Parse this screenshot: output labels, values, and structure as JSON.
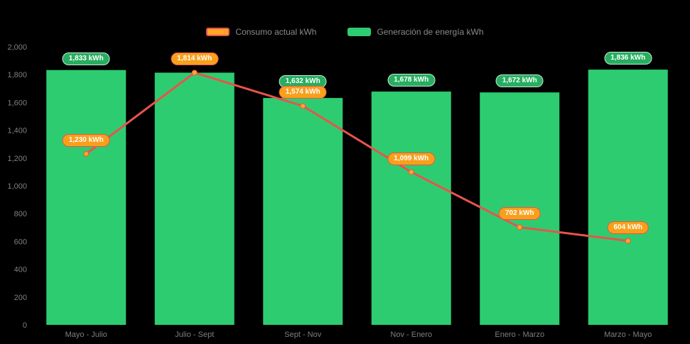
{
  "legend": {
    "consumption_label": "Consumo actual kWh",
    "generation_label": "Generación de energía kWh"
  },
  "colors": {
    "background": "#000000",
    "bar": "#2ECC71",
    "line": "#E8544B",
    "point_fill": "#FFA726",
    "axis_text": "#7F7F7F",
    "green_pill": "#27AE60",
    "orange_pill": "#F9A01B"
  },
  "chart_data": {
    "type": "bar",
    "subtype": "bar-with-line-overlay",
    "categories": [
      "Mayo - Julio",
      "Julio - Sept",
      "Sept - Nov",
      "Nov - Enero",
      "Enero - Marzo",
      "Marzo - Mayo"
    ],
    "series": [
      {
        "name": "Generación de energía kWh",
        "type": "bar",
        "color": "#2ECC71",
        "values": [
          1833,
          1814,
          1632,
          1678,
          1672,
          1836
        ],
        "labels": [
          "1,833 kWh",
          null,
          "1,632 kWh",
          "1,678 kWh",
          "1,672 kWh",
          "1,836 kWh"
        ]
      },
      {
        "name": "Consumo actual kWh",
        "type": "line",
        "color": "#E8544B",
        "values": [
          1230,
          1814,
          1574,
          1099,
          702,
          604
        ],
        "labels": [
          "1,230 kWh",
          "1,814 kWh",
          "1,574 kWh",
          "1,099 kWh",
          "702 kWh",
          "604 kWh"
        ]
      }
    ],
    "title": "",
    "xlabel": "",
    "ylabel": "",
    "ylim": [
      0,
      2000
    ],
    "ytick_step": 200,
    "ytick_labels": [
      "0",
      "200",
      "400",
      "600",
      "800",
      "1,000",
      "1,200",
      "1,400",
      "1,600",
      "1,800",
      "2,000"
    ],
    "grid": false,
    "legend_position": "top"
  }
}
